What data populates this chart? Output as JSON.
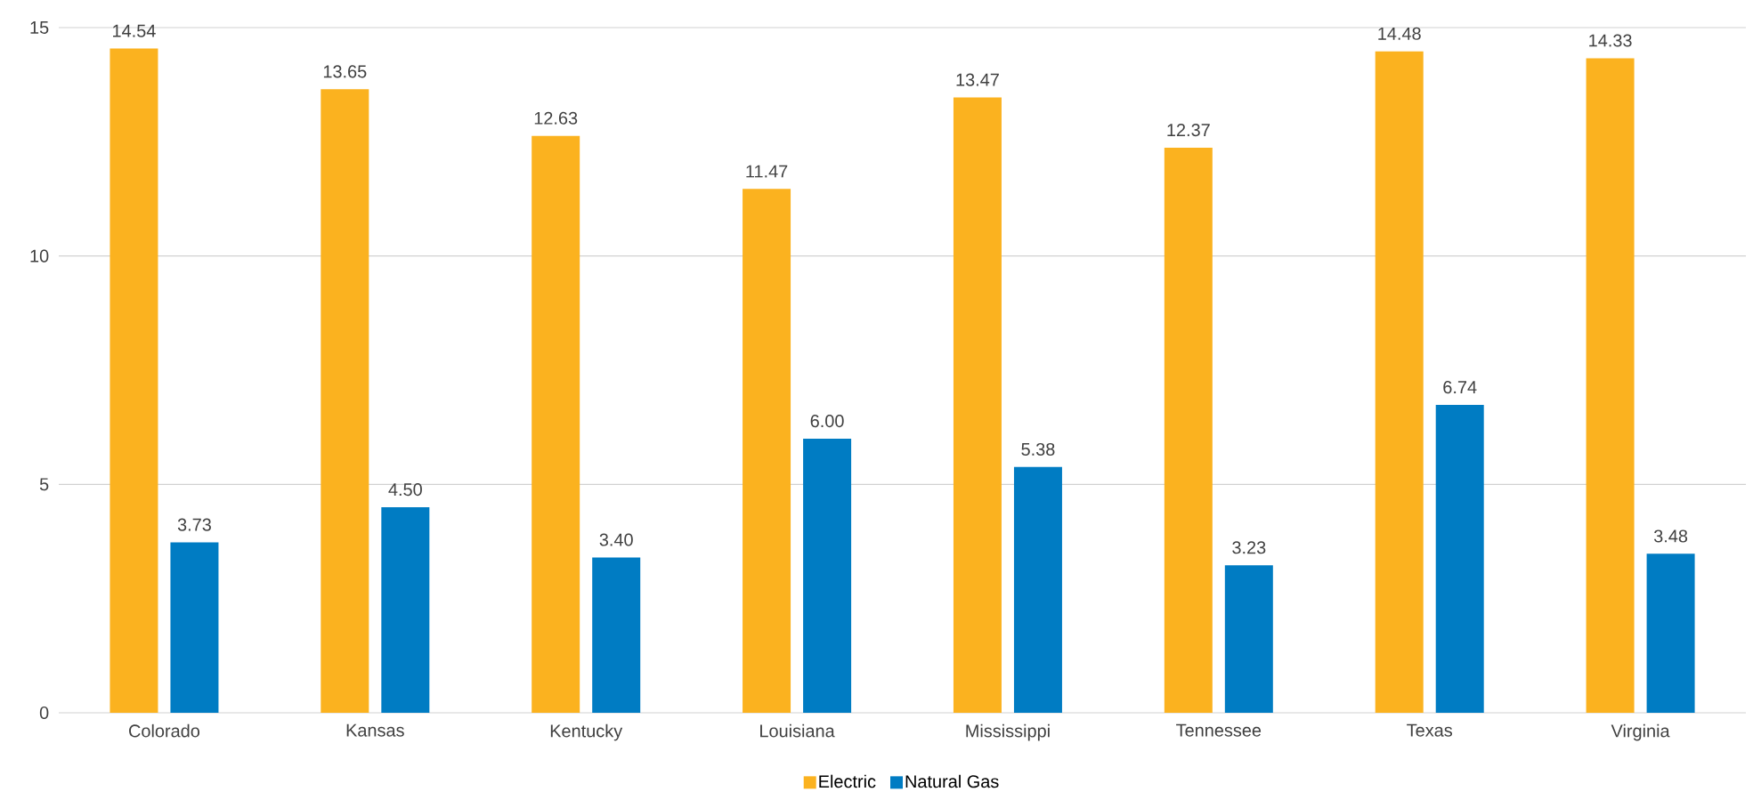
{
  "chart_data": {
    "type": "bar",
    "categories": [
      "Colorado",
      "Kansas",
      "Kentucky",
      "Louisiana",
      "Mississippi",
      "Tennessee",
      "Texas",
      "Virginia"
    ],
    "series": [
      {
        "name": "Electric",
        "color": "#fbb21f",
        "values": [
          14.54,
          13.65,
          12.63,
          11.47,
          13.47,
          12.37,
          14.48,
          14.33
        ],
        "value_labels": [
          "14.54",
          "13.65",
          "12.63",
          "11.47",
          "13.47",
          "12.37",
          "14.48",
          "14.33"
        ]
      },
      {
        "name": "Natural Gas",
        "color": "#007cc3",
        "values": [
          3.73,
          4.5,
          3.4,
          6.0,
          5.38,
          3.23,
          6.74,
          3.48
        ],
        "value_labels": [
          "3.73",
          "4.50",
          "3.40",
          "6.00",
          "5.38",
          "3.23",
          "6.74",
          "3.48"
        ]
      }
    ],
    "ylim": [
      0,
      15
    ],
    "yticks": [
      0,
      5,
      10,
      15
    ],
    "grid": "y",
    "legend": "bottom"
  }
}
